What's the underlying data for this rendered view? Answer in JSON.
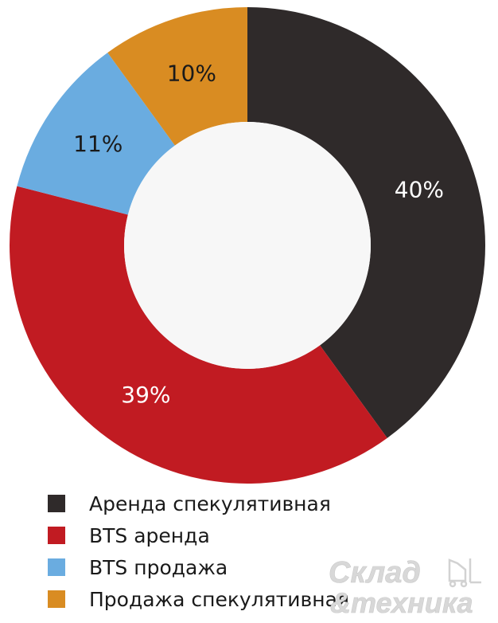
{
  "chart_data": {
    "type": "donut",
    "slices": [
      {
        "label": "Аренда спекулятивная",
        "value": 40,
        "value_label": "40%",
        "color": "#2f2a2a"
      },
      {
        "label": "BTS аренда",
        "value": 39,
        "value_label": "39%",
        "color": "#c11b22"
      },
      {
        "label": "BTS продажа",
        "value": 11,
        "value_label": "11%",
        "color": "#6aace0"
      },
      {
        "label": "Продажа спекулятивная",
        "value": 10,
        "value_label": "10%",
        "color": "#d98c22"
      }
    ],
    "legend_position": "bottom-left"
  },
  "watermark": {
    "line1": "Склад",
    "line2": "&техника"
  }
}
